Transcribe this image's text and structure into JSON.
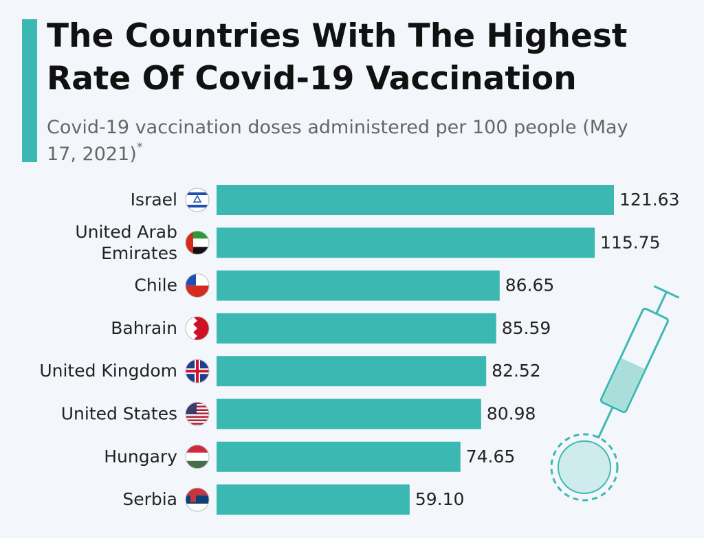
{
  "chart_data": {
    "type": "bar",
    "orientation": "horizontal",
    "title": "The Countries With The Highest Rate Of Covid-19 Vaccination",
    "subtitle": "Covid-19 vaccination doses administered per 100 people (May 17, 2021)",
    "footnote_marker": "*",
    "categories": [
      "Israel",
      "United Arab Emirates",
      "Chile",
      "Bahrain",
      "United Kingdom",
      "United States",
      "Hungary",
      "Serbia"
    ],
    "values": [
      121.63,
      115.75,
      86.65,
      85.59,
      82.52,
      80.98,
      74.65,
      59.1
    ],
    "value_labels": [
      "121.63",
      "115.75",
      "86.65",
      "85.59",
      "82.52",
      "80.98",
      "74.65",
      "59.10"
    ],
    "color": "#3cb8b2"
  }
}
